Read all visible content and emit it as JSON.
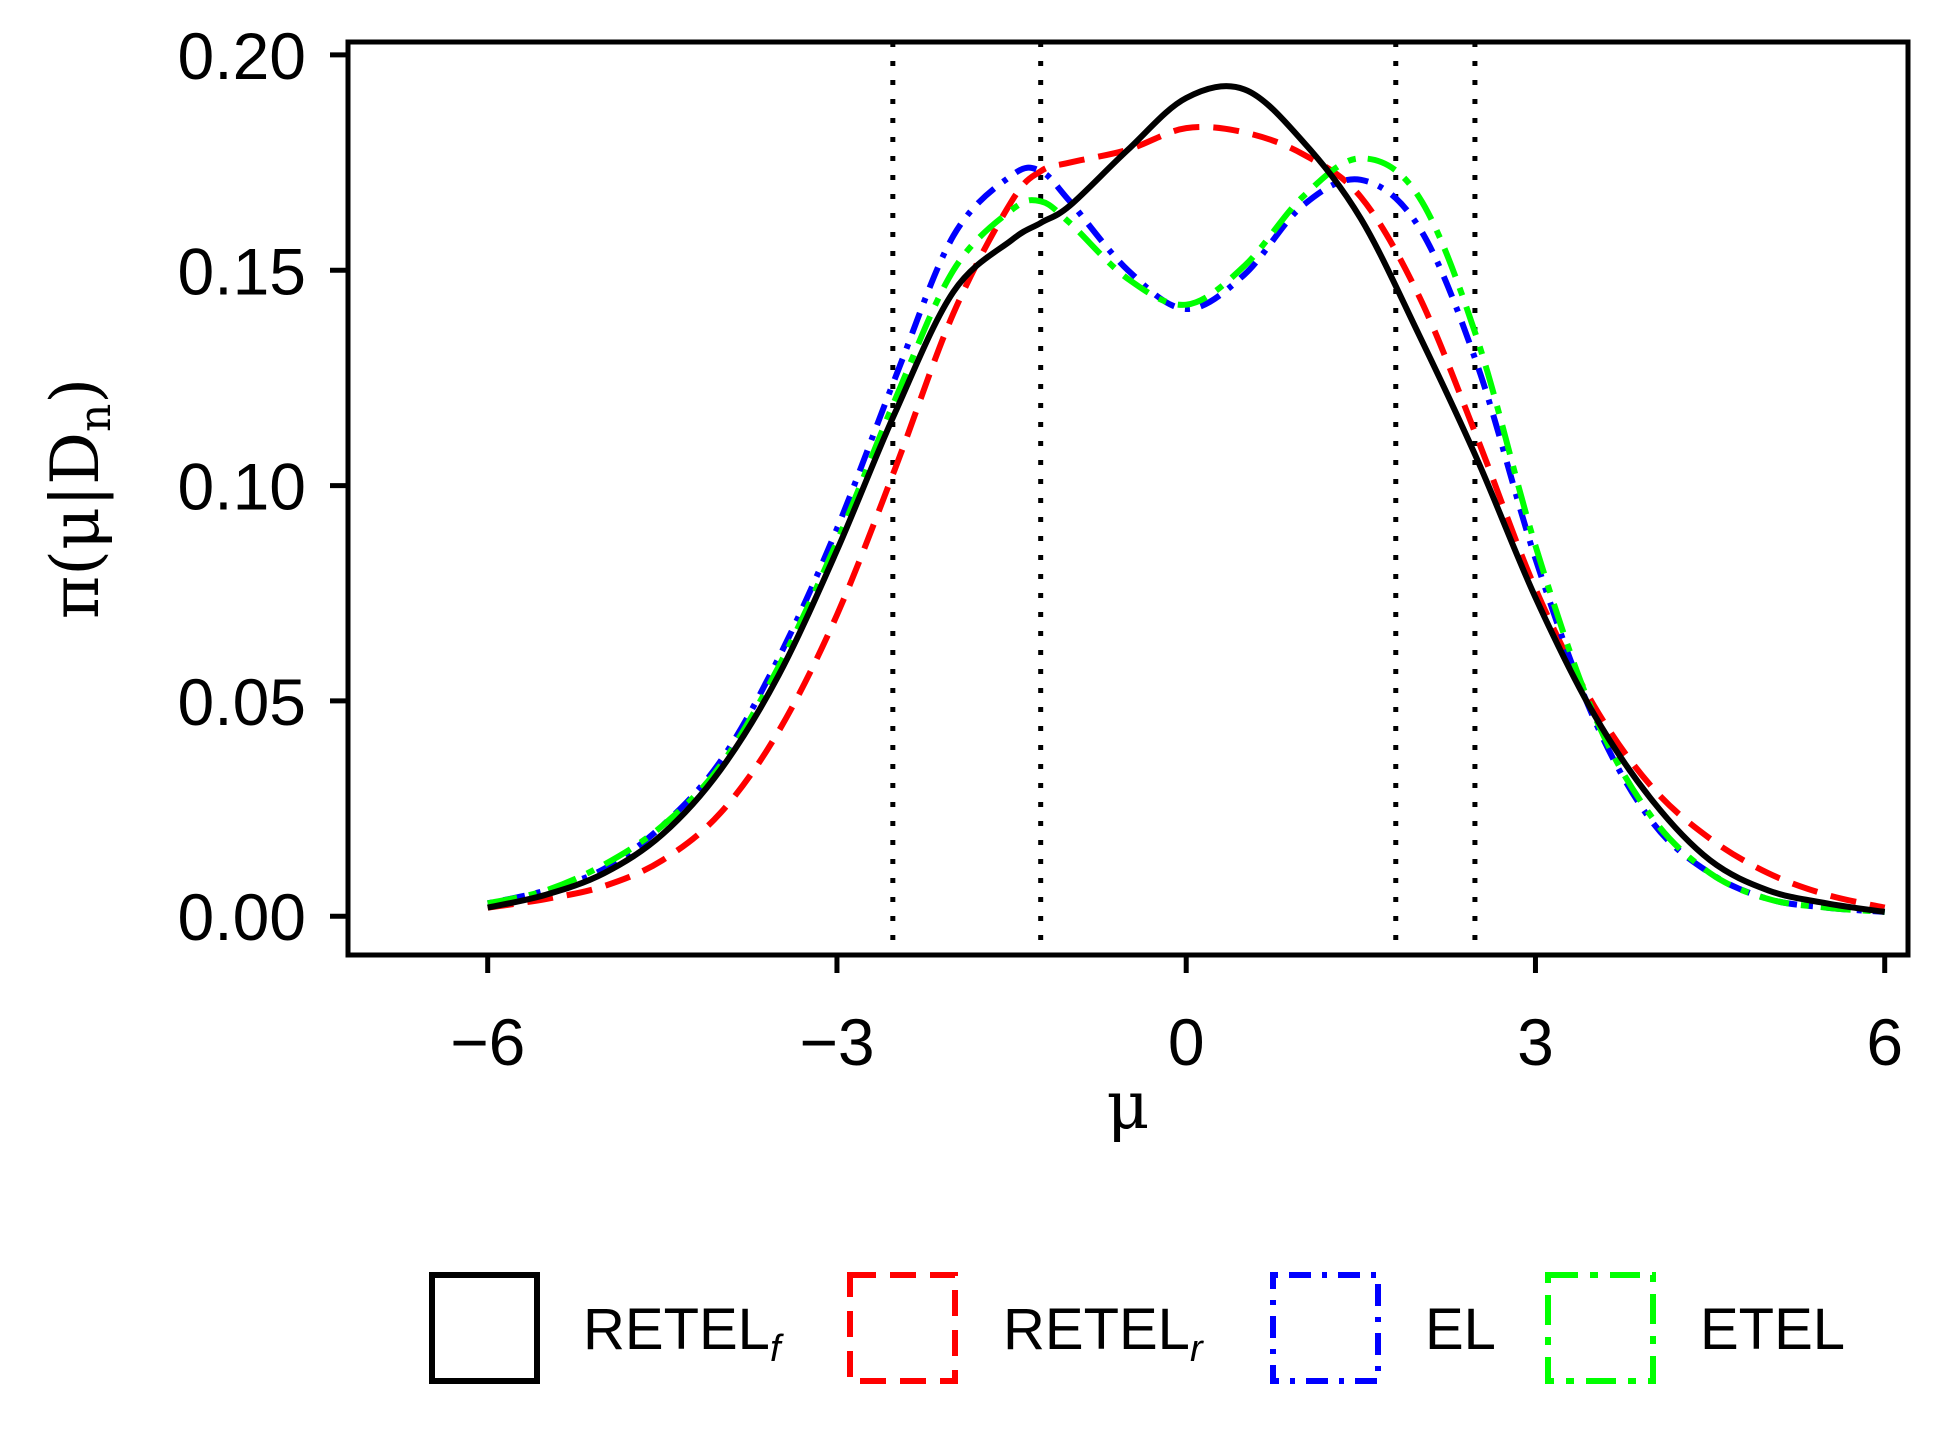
{
  "chart_data": {
    "type": "line",
    "xlabel": "μ",
    "ylabel": {
      "main": "π(μ|D",
      "sub": "n",
      "close": ")"
    },
    "xlim": [
      -7.2,
      6.2
    ],
    "ylim": [
      -0.009,
      0.203
    ],
    "xticks": [
      -6,
      -3,
      0,
      3,
      6
    ],
    "xtick_labels": [
      "−6",
      "−3",
      "0",
      "3",
      "6"
    ],
    "yticks": [
      0,
      0.05,
      0.1,
      0.15,
      0.2
    ],
    "ytick_labels": [
      "0.00",
      "0.05",
      "0.10",
      "0.15",
      "0.20"
    ],
    "grid": false,
    "legend_position": "bottom",
    "vlines": [
      -2.52,
      -1.25,
      1.8,
      2.48
    ],
    "x": [
      -6.0,
      -5.5,
      -5.0,
      -4.5,
      -4.0,
      -3.5,
      -3.0,
      -2.5,
      -2.0,
      -1.5,
      -1.25,
      -1.0,
      -0.5,
      0.0,
      0.5,
      1.0,
      1.5,
      2.0,
      2.5,
      3.0,
      3.5,
      4.0,
      4.5,
      5.0,
      5.5,
      6.0
    ],
    "series": [
      {
        "name": "RETEL",
        "sub": "f",
        "color": "#000000",
        "dash": "solid",
        "values": [
          0.002,
          0.005,
          0.01,
          0.019,
          0.034,
          0.056,
          0.085,
          0.117,
          0.145,
          0.157,
          0.161,
          0.165,
          0.178,
          0.19,
          0.192,
          0.18,
          0.162,
          0.135,
          0.106,
          0.074,
          0.047,
          0.027,
          0.013,
          0.006,
          0.003,
          0.001
        ]
      },
      {
        "name": "RETEL",
        "sub": "r",
        "color": "#ff0000",
        "dash": "dashed",
        "values": [
          0.002,
          0.004,
          0.007,
          0.013,
          0.024,
          0.043,
          0.07,
          0.104,
          0.14,
          0.166,
          0.173,
          0.175,
          0.178,
          0.183,
          0.182,
          0.177,
          0.167,
          0.144,
          0.111,
          0.076,
          0.049,
          0.03,
          0.018,
          0.01,
          0.005,
          0.002
        ]
      },
      {
        "name": "EL",
        "sub": "",
        "color": "#0000ff",
        "dash": "dotdash",
        "values": [
          0.003,
          0.006,
          0.011,
          0.021,
          0.036,
          0.06,
          0.09,
          0.125,
          0.158,
          0.172,
          0.173,
          0.166,
          0.15,
          0.141,
          0.149,
          0.165,
          0.171,
          0.16,
          0.128,
          0.083,
          0.046,
          0.022,
          0.01,
          0.004,
          0.002,
          0.001
        ]
      },
      {
        "name": "ETEL",
        "sub": "",
        "color": "#00ff00",
        "dash": "longdash",
        "values": [
          0.003,
          0.006,
          0.012,
          0.021,
          0.035,
          0.058,
          0.087,
          0.12,
          0.15,
          0.164,
          0.166,
          0.161,
          0.148,
          0.142,
          0.151,
          0.167,
          0.176,
          0.167,
          0.134,
          0.086,
          0.047,
          0.023,
          0.01,
          0.004,
          0.002,
          0.001
        ]
      }
    ]
  }
}
